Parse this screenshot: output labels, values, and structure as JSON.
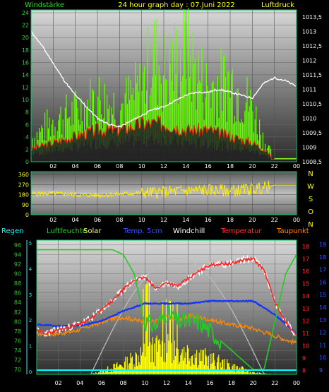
{
  "header": {
    "left": "Windstärke",
    "center": "24 hour graph day : 07.Juni 2022",
    "right": "Luftdruck"
  },
  "colors": {
    "wind": "#88ee22",
    "gust": "#66ff00",
    "pressure": "#ffffff",
    "direction": "#ffee00",
    "rain": "#00ffff",
    "humidity": "#22cc22",
    "solar": "#ffff00",
    "soil_temp": "#1133ff",
    "windchill": "#ffffff",
    "temperature": "#ff2222",
    "dewpoint": "#ff8800",
    "frame": "#00cc66"
  },
  "legend": {
    "rain": "Regen",
    "humidity": "Luftfeuchte",
    "solar": "Solar",
    "soil": "Temp. 5cm",
    "windchill": "Windchill",
    "temperature": "Temperatur",
    "dewpoint": "Taupunkt"
  },
  "compass": [
    "N",
    "W",
    "S",
    "O",
    "N"
  ],
  "chart_data": [
    {
      "type": "line",
      "name": "wind-pressure",
      "x_ticks": [
        "02",
        "04",
        "06",
        "08",
        "10",
        "12",
        "14",
        "16",
        "18",
        "20",
        "22",
        "00"
      ],
      "y_left_ticks": [
        "0",
        "2",
        "4",
        "6",
        "8",
        "10",
        "12",
        "14",
        "16",
        "18",
        "20",
        "22",
        "24"
      ],
      "ylim_left": [
        0,
        24
      ],
      "y_right_ticks": [
        "1008,5",
        "1009",
        "1009,5",
        "1010",
        "1010,5",
        "1011",
        "1011,5",
        "1012",
        "1012,5",
        "1013",
        "1013,5"
      ],
      "ylim_right": [
        1008.5,
        1013.5
      ],
      "pressure": {
        "x": [
          0,
          1,
          2,
          3,
          4,
          5,
          6,
          7,
          8,
          9,
          10,
          11,
          12,
          13,
          14,
          15,
          16,
          17,
          18,
          19,
          20,
          21,
          22,
          23,
          24
        ],
        "y": [
          1013.0,
          1012.5,
          1011.9,
          1011.3,
          1010.8,
          1010.4,
          1010.0,
          1009.8,
          1009.7,
          1009.9,
          1010.1,
          1010.3,
          1010.4,
          1010.6,
          1010.8,
          1010.9,
          1010.9,
          1011.0,
          1010.9,
          1010.8,
          1010.7,
          1011.2,
          1011.4,
          1011.3,
          1011.1
        ]
      },
      "wind_mean": {
        "x": [
          0,
          2,
          4,
          6,
          8,
          10,
          12,
          14,
          16,
          18,
          20,
          21,
          22,
          24
        ],
        "y": [
          2,
          3,
          4,
          5,
          5,
          6,
          6,
          5,
          5,
          4,
          3,
          2,
          0.5,
          0.5
        ]
      },
      "wind_gust": {
        "x": [
          0,
          2,
          4,
          6,
          8,
          10,
          11,
          12,
          13,
          14,
          16,
          18,
          20,
          21,
          22,
          24
        ],
        "y": [
          5,
          9,
          11,
          14,
          12,
          16,
          24,
          20,
          22,
          24,
          16,
          18,
          12,
          5,
          0.5,
          0.5
        ]
      }
    },
    {
      "type": "line",
      "name": "wind-direction",
      "x_ticks": [
        "02",
        "04",
        "06",
        "08",
        "10",
        "12",
        "14",
        "16",
        "18",
        "20",
        "22",
        "00"
      ],
      "y_ticks": [
        "0",
        "90",
        "180",
        "270",
        "360"
      ],
      "ylim": [
        0,
        360
      ],
      "direction": {
        "x": [
          0,
          2,
          4,
          6,
          8,
          10,
          12,
          14,
          16,
          18,
          20,
          21,
          22,
          24
        ],
        "y": [
          185,
          190,
          180,
          175,
          185,
          195,
          205,
          215,
          220,
          215,
          230,
          240,
          265,
          265
        ]
      }
    },
    {
      "type": "line",
      "name": "temperature-humidity",
      "x_ticks": [
        "02",
        "04",
        "06",
        "08",
        "10",
        "12",
        "14",
        "16",
        "18",
        "20",
        "22",
        "00"
      ],
      "y_left_ticks": [
        "70",
        "72",
        "74",
        "76",
        "78",
        "80",
        "82",
        "84",
        "86",
        "88",
        "90",
        "92",
        "94",
        "96"
      ],
      "ylim_left": [
        69,
        97
      ],
      "y_right_ticks": [
        "8",
        "9",
        "10",
        "11",
        "12",
        "13",
        "14",
        "15",
        "16",
        "17",
        "18"
      ],
      "ylim_right": [
        7.7,
        18.5
      ],
      "y_far_right_ticks": [
        "9",
        "10",
        "11",
        "12",
        "13",
        "14",
        "15",
        "16",
        "17",
        "18",
        "19"
      ],
      "rain_axis_ticks": [
        "0",
        "1",
        "2",
        "3",
        "4",
        "5"
      ],
      "humidity": {
        "x": [
          0,
          1,
          2,
          3,
          4,
          5,
          6,
          7,
          8,
          9,
          10,
          11,
          12,
          13,
          14,
          15,
          16,
          17,
          18,
          19,
          20,
          21,
          22,
          23,
          24
        ],
        "y": [
          95,
          95,
          95,
          95,
          95,
          95,
          95,
          95,
          94,
          90,
          80,
          79,
          82,
          80,
          80,
          80,
          78,
          76,
          74,
          72,
          70,
          70,
          80,
          90,
          94
        ]
      },
      "temperature": {
        "x": [
          0,
          1,
          2,
          3,
          4,
          5,
          6,
          7,
          8,
          9,
          10,
          11,
          12,
          13,
          14,
          15,
          16,
          17,
          18,
          19,
          20,
          21,
          22,
          23,
          24
        ],
        "y": [
          11.2,
          11.0,
          11.3,
          11.5,
          11.8,
          12.2,
          12.9,
          13.6,
          14.5,
          15.3,
          15.5,
          14.6,
          15.1,
          14.8,
          15.4,
          16.0,
          16.5,
          16.6,
          16.6,
          16.9,
          17.0,
          16.1,
          13.5,
          11.9,
          10.8
        ]
      },
      "dewpoint": {
        "x": [
          0,
          1,
          2,
          3,
          4,
          5,
          6,
          7,
          8,
          9,
          10,
          11,
          12,
          13,
          14,
          15,
          16,
          17,
          18,
          19,
          20,
          21,
          22,
          23,
          24
        ],
        "y": [
          11.0,
          10.9,
          11.0,
          11.1,
          11.3,
          11.6,
          11.9,
          12.2,
          12.3,
          12.1,
          11.9,
          12.0,
          12.3,
          12.1,
          12.4,
          12.3,
          12.1,
          11.9,
          11.7,
          11.6,
          11.4,
          11.1,
          10.8,
          10.5,
          10.2
        ]
      },
      "soil": {
        "x": [
          0,
          2,
          4,
          6,
          8,
          10,
          12,
          14,
          16,
          18,
          20,
          22,
          24
        ],
        "y": [
          11.7,
          11.6,
          11.6,
          12.0,
          12.8,
          13.4,
          13.4,
          13.4,
          13.6,
          13.6,
          13.6,
          12.5,
          11.0
        ]
      },
      "solar": {
        "x": [
          0,
          5,
          6,
          8,
          10,
          12,
          14,
          16,
          18,
          20,
          22,
          24
        ],
        "y": [
          0,
          0,
          1,
          3,
          7,
          8.2,
          7,
          4.5,
          2.5,
          0.5,
          0,
          0
        ]
      }
    }
  ]
}
